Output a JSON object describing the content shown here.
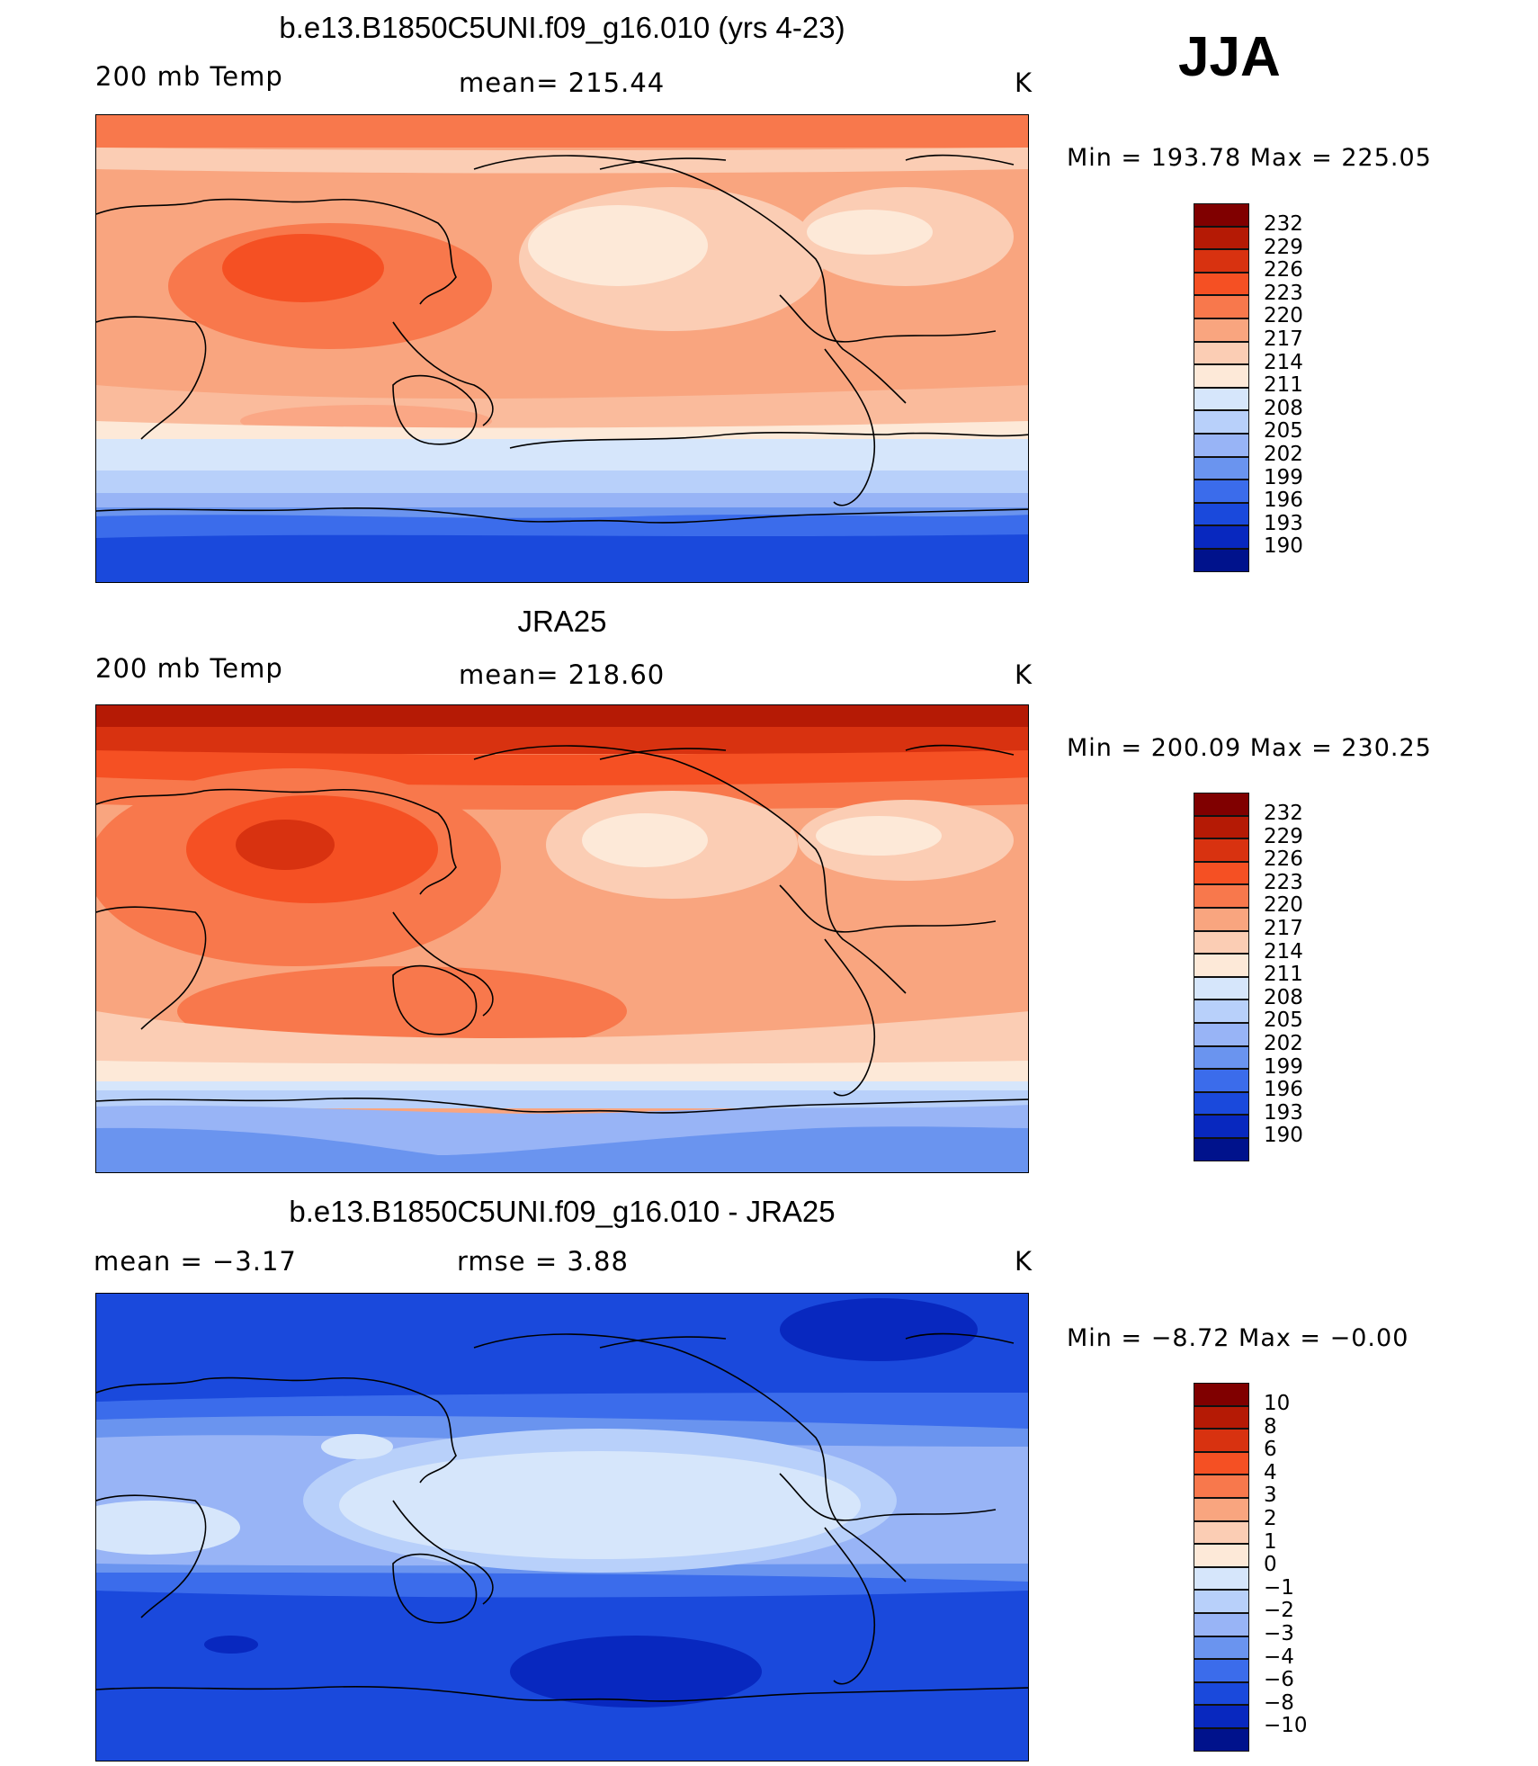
{
  "season": "JJA",
  "colors": {
    "scale": [
      "#800000",
      "#b51a05",
      "#d83210",
      "#f55023",
      "#f8784c",
      "#f9a57f",
      "#fbcdb4",
      "#fde9d8",
      "#d6e6fb",
      "#b8d0fa",
      "#98b4f6",
      "#6a94ef",
      "#3b6ceb",
      "#1a49dc",
      "#0828bf",
      "#00128c"
    ]
  },
  "panels": [
    {
      "title": "b.e13.B1850C5UNI.f09_g16.010 (yrs 4-23)",
      "left_label": "200 mb Temp",
      "center_label": "mean=  215.44",
      "units": "K",
      "minmax": "Min  =  193.78  Max  =  225.05",
      "colorbar_labels": [
        "232",
        "229",
        "226",
        "223",
        "220",
        "217",
        "214",
        "211",
        "208",
        "205",
        "202",
        "199",
        "196",
        "193",
        "190"
      ]
    },
    {
      "title": "JRA25",
      "left_label": "200 mb Temp",
      "center_label": "mean=  218.60",
      "units": "K",
      "minmax": "Min  =  200.09  Max  =  230.25",
      "colorbar_labels": [
        "232",
        "229",
        "226",
        "223",
        "220",
        "217",
        "214",
        "211",
        "208",
        "205",
        "202",
        "199",
        "196",
        "193",
        "190"
      ]
    },
    {
      "title": "b.e13.B1850C5UNI.f09_g16.010 - JRA25",
      "left_label": "mean  =     −3.17",
      "center_label": "rmse  =      3.88",
      "units": "K",
      "minmax": "Min  =    −8.72  Max  =    −0.00",
      "colorbar_labels": [
        "10",
        "8",
        "6",
        "4",
        "3",
        "2",
        "1",
        "0",
        "−1",
        "−2",
        "−3",
        "−4",
        "−6",
        "−8",
        "−10"
      ]
    }
  ]
}
